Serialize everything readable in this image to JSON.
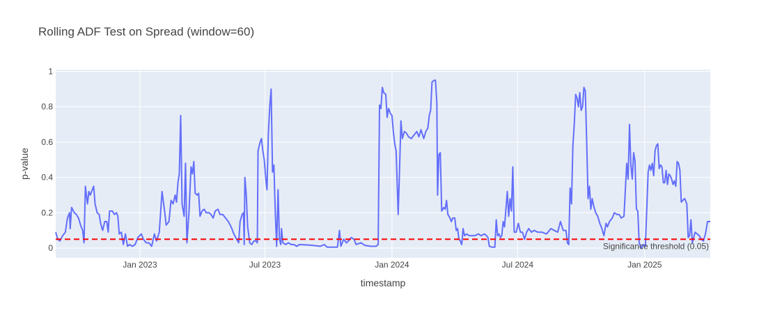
{
  "chart_data": {
    "type": "line",
    "title": "Rolling ADF Test on Spread (window=60)",
    "x_label": "timestamp",
    "y_label": "p-value",
    "color": "#636efa",
    "grid": true,
    "xlim": [
      "2022-09-01",
      "2025-04-06"
    ],
    "xticks": [
      {
        "value": "2023-01-01",
        "label": "Jan 2023"
      },
      {
        "value": "2023-07-01",
        "label": "Jul 2023"
      },
      {
        "value": "2024-01-01",
        "label": "Jan 2024"
      },
      {
        "value": "2024-07-01",
        "label": "Jul 2024"
      },
      {
        "value": "2025-01-01",
        "label": "Jan 2025"
      }
    ],
    "ylim": [
      -0.055,
      1.01
    ],
    "yticks": [
      0,
      0.2,
      0.4,
      0.6,
      0.8,
      1
    ],
    "threshold": {
      "value": 0.05,
      "label": "Significance threshold (0.05)",
      "color": "#ff0000"
    },
    "x": [
      "2022-09-01",
      "2022-09-04",
      "2022-09-07",
      "2022-09-11",
      "2022-09-15",
      "2022-09-18",
      "2022-09-21",
      "2022-09-22",
      "2022-09-24",
      "2022-09-28",
      "2022-10-01",
      "2022-10-04",
      "2022-10-07",
      "2022-10-10",
      "2022-10-12",
      "2022-10-14",
      "2022-10-17",
      "2022-10-19",
      "2022-10-21",
      "2022-10-24",
      "2022-10-26",
      "2022-10-28",
      "2022-10-31",
      "2022-11-03",
      "2022-11-05",
      "2022-11-08",
      "2022-11-11",
      "2022-11-14",
      "2022-11-16",
      "2022-11-18",
      "2022-11-22",
      "2022-11-25",
      "2022-11-28",
      "2022-11-30",
      "2022-12-02",
      "2022-12-05",
      "2022-12-08",
      "2022-12-11",
      "2022-12-14",
      "2022-12-17",
      "2022-12-21",
      "2022-12-25",
      "2022-12-29",
      "2023-01-03",
      "2023-01-06",
      "2023-01-10",
      "2023-01-14",
      "2023-01-18",
      "2023-01-22",
      "2023-01-25",
      "2023-01-29",
      "2023-02-02",
      "2023-02-06",
      "2023-02-08",
      "2023-02-12",
      "2023-02-15",
      "2023-02-18",
      "2023-02-21",
      "2023-02-23",
      "2023-02-25",
      "2023-02-27",
      "2023-03-01",
      "2023-03-03",
      "2023-03-06",
      "2023-03-08",
      "2023-03-10",
      "2023-03-13",
      "2023-03-16",
      "2023-03-18",
      "2023-03-20",
      "2023-03-22",
      "2023-03-25",
      "2023-03-27",
      "2023-03-29",
      "2023-04-01",
      "2023-04-04",
      "2023-04-07",
      "2023-04-11",
      "2023-04-14",
      "2023-04-17",
      "2023-04-20",
      "2023-04-24",
      "2023-04-27",
      "2023-05-01",
      "2023-05-05",
      "2023-05-09",
      "2023-05-13",
      "2023-05-17",
      "2023-05-21",
      "2023-05-24",
      "2023-05-26",
      "2023-05-29",
      "2023-05-31",
      "2023-06-01",
      "2023-06-02",
      "2023-06-04",
      "2023-06-06",
      "2023-06-09",
      "2023-06-12",
      "2023-06-15",
      "2023-06-18",
      "2023-06-20",
      "2023-06-21",
      "2023-06-24",
      "2023-06-26",
      "2023-06-28",
      "2023-06-30",
      "2023-07-03",
      "2023-07-04",
      "2023-07-06",
      "2023-07-08",
      "2023-07-10",
      "2023-07-12",
      "2023-07-14",
      "2023-07-16",
      "2023-07-18",
      "2023-07-20",
      "2023-07-22",
      "2023-07-24",
      "2023-07-25",
      "2023-07-27",
      "2023-07-31",
      "2023-08-04",
      "2023-08-08",
      "2023-08-12",
      "2023-08-16",
      "2023-08-20",
      "2023-08-30",
      "2023-09-09",
      "2023-09-19",
      "2023-09-25",
      "2023-09-29",
      "2023-10-08",
      "2023-10-14",
      "2023-10-17",
      "2023-10-19",
      "2023-10-23",
      "2023-10-27",
      "2023-10-30",
      "2023-11-03",
      "2023-11-07",
      "2023-11-10",
      "2023-11-17",
      "2023-11-23",
      "2023-12-01",
      "2023-12-09",
      "2023-12-12",
      "2023-12-14",
      "2023-12-16",
      "2023-12-18",
      "2023-12-20",
      "2023-12-23",
      "2023-12-25",
      "2023-12-27",
      "2023-12-30",
      "2024-01-01",
      "2024-01-03",
      "2024-01-05",
      "2024-01-07",
      "2024-01-10",
      "2024-01-12",
      "2024-01-14",
      "2024-01-16",
      "2024-01-19",
      "2024-01-22",
      "2024-01-25",
      "2024-01-29",
      "2024-02-02",
      "2024-02-06",
      "2024-02-09",
      "2024-02-12",
      "2024-02-16",
      "2024-02-19",
      "2024-02-22",
      "2024-02-24",
      "2024-02-26",
      "2024-02-28",
      "2024-03-02",
      "2024-03-04",
      "2024-03-06",
      "2024-03-07",
      "2024-03-09",
      "2024-03-11",
      "2024-03-13",
      "2024-03-16",
      "2024-03-18",
      "2024-03-20",
      "2024-03-22",
      "2024-03-25",
      "2024-03-27",
      "2024-03-29",
      "2024-04-01",
      "2024-04-03",
      "2024-04-05",
      "2024-04-07",
      "2024-04-09",
      "2024-04-11",
      "2024-04-13",
      "2024-04-15",
      "2024-04-18",
      "2024-04-22",
      "2024-04-26",
      "2024-04-30",
      "2024-05-05",
      "2024-05-09",
      "2024-05-14",
      "2024-05-17",
      "2024-05-19",
      "2024-05-21",
      "2024-05-25",
      "2024-05-29",
      "2024-05-31",
      "2024-06-02",
      "2024-06-04",
      "2024-06-06",
      "2024-06-08",
      "2024-06-10",
      "2024-06-12",
      "2024-06-14",
      "2024-06-16",
      "2024-06-18",
      "2024-06-20",
      "2024-06-22",
      "2024-06-24",
      "2024-06-26",
      "2024-06-29",
      "2024-07-02",
      "2024-07-05",
      "2024-07-08",
      "2024-07-11",
      "2024-07-14",
      "2024-07-17",
      "2024-07-21",
      "2024-07-25",
      "2024-07-30",
      "2024-08-05",
      "2024-08-12",
      "2024-08-18",
      "2024-08-23",
      "2024-08-28",
      "2024-09-01",
      "2024-09-05",
      "2024-09-09",
      "2024-09-11",
      "2024-09-13",
      "2024-09-15",
      "2024-09-17",
      "2024-09-19",
      "2024-09-21",
      "2024-09-23",
      "2024-09-25",
      "2024-09-27",
      "2024-09-29",
      "2024-10-01",
      "2024-10-03",
      "2024-10-05",
      "2024-10-07",
      "2024-10-09",
      "2024-10-11",
      "2024-10-13",
      "2024-10-15",
      "2024-10-17",
      "2024-10-19",
      "2024-10-22",
      "2024-10-25",
      "2024-10-28",
      "2024-10-31",
      "2024-11-03",
      "2024-11-06",
      "2024-11-08",
      "2024-11-11",
      "2024-11-15",
      "2024-11-18",
      "2024-11-22",
      "2024-11-25",
      "2024-11-28",
      "2024-12-02",
      "2024-12-06",
      "2024-12-08",
      "2024-12-10",
      "2024-12-12",
      "2024-12-14",
      "2024-12-16",
      "2024-12-18",
      "2024-12-20",
      "2024-12-22",
      "2024-12-24",
      "2024-12-27",
      "2024-12-30",
      "2025-01-02",
      "2025-01-06",
      "2025-01-08",
      "2025-01-10",
      "2025-01-12",
      "2025-01-14",
      "2025-01-16",
      "2025-01-18",
      "2025-01-20",
      "2025-01-22",
      "2025-01-24",
      "2025-01-26",
      "2025-01-28",
      "2025-01-30",
      "2025-02-01",
      "2025-02-03",
      "2025-02-05",
      "2025-02-07",
      "2025-02-09",
      "2025-02-11",
      "2025-02-13",
      "2025-02-15",
      "2025-02-17",
      "2025-02-19",
      "2025-02-21",
      "2025-02-23",
      "2025-02-25",
      "2025-02-28",
      "2025-03-03",
      "2025-03-05",
      "2025-03-07",
      "2025-03-09",
      "2025-03-11",
      "2025-03-13",
      "2025-03-15",
      "2025-03-18",
      "2025-03-21",
      "2025-03-24",
      "2025-03-27",
      "2025-03-30",
      "2025-04-02",
      "2025-04-06"
    ],
    "values": [
      0.09,
      0.05,
      0.04,
      0.07,
      0.09,
      0.17,
      0.2,
      0.11,
      0.23,
      0.2,
      0.19,
      0.17,
      0.13,
      0.1,
      0.03,
      0.35,
      0.25,
      0.32,
      0.3,
      0.33,
      0.35,
      0.25,
      0.2,
      0.19,
      0.14,
      0.1,
      0.15,
      0.15,
      0.09,
      0.21,
      0.21,
      0.19,
      0.2,
      0.18,
      0.08,
      0.09,
      0.02,
      0.08,
      0.01,
      0.02,
      0.01,
      0.02,
      0.06,
      0.08,
      0.05,
      0.03,
      0.03,
      0.01,
      0.08,
      0.04,
      0.09,
      0.32,
      0.2,
      0.13,
      0.15,
      0.27,
      0.25,
      0.3,
      0.26,
      0.37,
      0.42,
      0.75,
      0.25,
      0.18,
      0.48,
      0.03,
      0.2,
      0.46,
      0.42,
      0.49,
      0.31,
      0.3,
      0.31,
      0.18,
      0.21,
      0.22,
      0.2,
      0.2,
      0.19,
      0.17,
      0.21,
      0.22,
      0.19,
      0.19,
      0.17,
      0.15,
      0.12,
      0.08,
      0.05,
      0.03,
      0.15,
      0.19,
      0.2,
      0.02,
      0.4,
      0.3,
      0.12,
      0.03,
      0.02,
      0.04,
      0.04,
      0.03,
      0.55,
      0.6,
      0.62,
      0.55,
      0.5,
      0.36,
      0.33,
      0.65,
      0.8,
      0.9,
      0.43,
      0.47,
      0.2,
      0.01,
      0.33,
      0.05,
      0.02,
      0.11,
      0.03,
      0.02,
      0.03,
      0.02,
      0.02,
      0.01,
      0.02,
      0.018,
      0.015,
      0.01,
      0.02,
      0.005,
      0.005,
      0.005,
      0.1,
      0.01,
      0.05,
      0.03,
      0.04,
      0.06,
      0.05,
      0.02,
      0.03,
      0.015,
      0.01,
      0.01,
      0.02,
      0.81,
      0.79,
      0.91,
      0.88,
      0.87,
      0.74,
      0.79,
      0.76,
      0.75,
      0.66,
      0.59,
      0.55,
      0.19,
      0.45,
      0.72,
      0.62,
      0.66,
      0.65,
      0.63,
      0.62,
      0.64,
      0.66,
      0.63,
      0.67,
      0.62,
      0.66,
      0.68,
      0.75,
      0.78,
      0.94,
      0.95,
      0.95,
      0.82,
      0.3,
      0.53,
      0.54,
      0.21,
      0.23,
      0.22,
      0.27,
      0.19,
      0.17,
      0.15,
      0.17,
      0.17,
      0.1,
      0.11,
      0.05,
      0.04,
      0.02,
      0.11,
      0.07,
      0.08,
      0.07,
      0.07,
      0.07,
      0.08,
      0.07,
      0.08,
      0.07,
      0.06,
      0.01,
      0.005,
      0.005,
      0.16,
      0.07,
      0.08,
      0.06,
      0.07,
      0.15,
      0.12,
      0.22,
      0.32,
      0.18,
      0.28,
      0.21,
      0.46,
      0.09,
      0.09,
      0.14,
      0.09,
      0.09,
      0.05,
      0.09,
      0.11,
      0.09,
      0.1,
      0.09,
      0.09,
      0.08,
      0.11,
      0.1,
      0.09,
      0.15,
      0.1,
      0.1,
      0.03,
      0.02,
      0.34,
      0.25,
      0.58,
      0.7,
      0.87,
      0.85,
      0.8,
      0.88,
      0.78,
      0.8,
      0.91,
      0.89,
      0.6,
      0.28,
      0.35,
      0.22,
      0.28,
      0.24,
      0.2,
      0.18,
      0.14,
      0.11,
      0.07,
      0.14,
      0.12,
      0.15,
      0.17,
      0.2,
      0.19,
      0.19,
      0.17,
      0.18,
      0.48,
      0.39,
      0.7,
      0.47,
      0.39,
      0.54,
      0.49,
      0.22,
      0.21,
      0.03,
      0.0,
      0.02,
      0.01,
      0.43,
      0.47,
      0.44,
      0.48,
      0.41,
      0.55,
      0.58,
      0.59,
      0.45,
      0.47,
      0.46,
      0.37,
      0.37,
      0.44,
      0.36,
      0.42,
      0.41,
      0.39,
      0.36,
      0.38,
      0.35,
      0.49,
      0.48,
      0.44,
      0.26,
      0.27,
      0.28,
      0.25,
      0.06,
      0.07,
      0.16,
      0.03,
      0.06,
      0.09,
      0.08,
      0.07,
      0.05,
      0.04,
      0.08,
      0.15,
      0.15
    ]
  }
}
